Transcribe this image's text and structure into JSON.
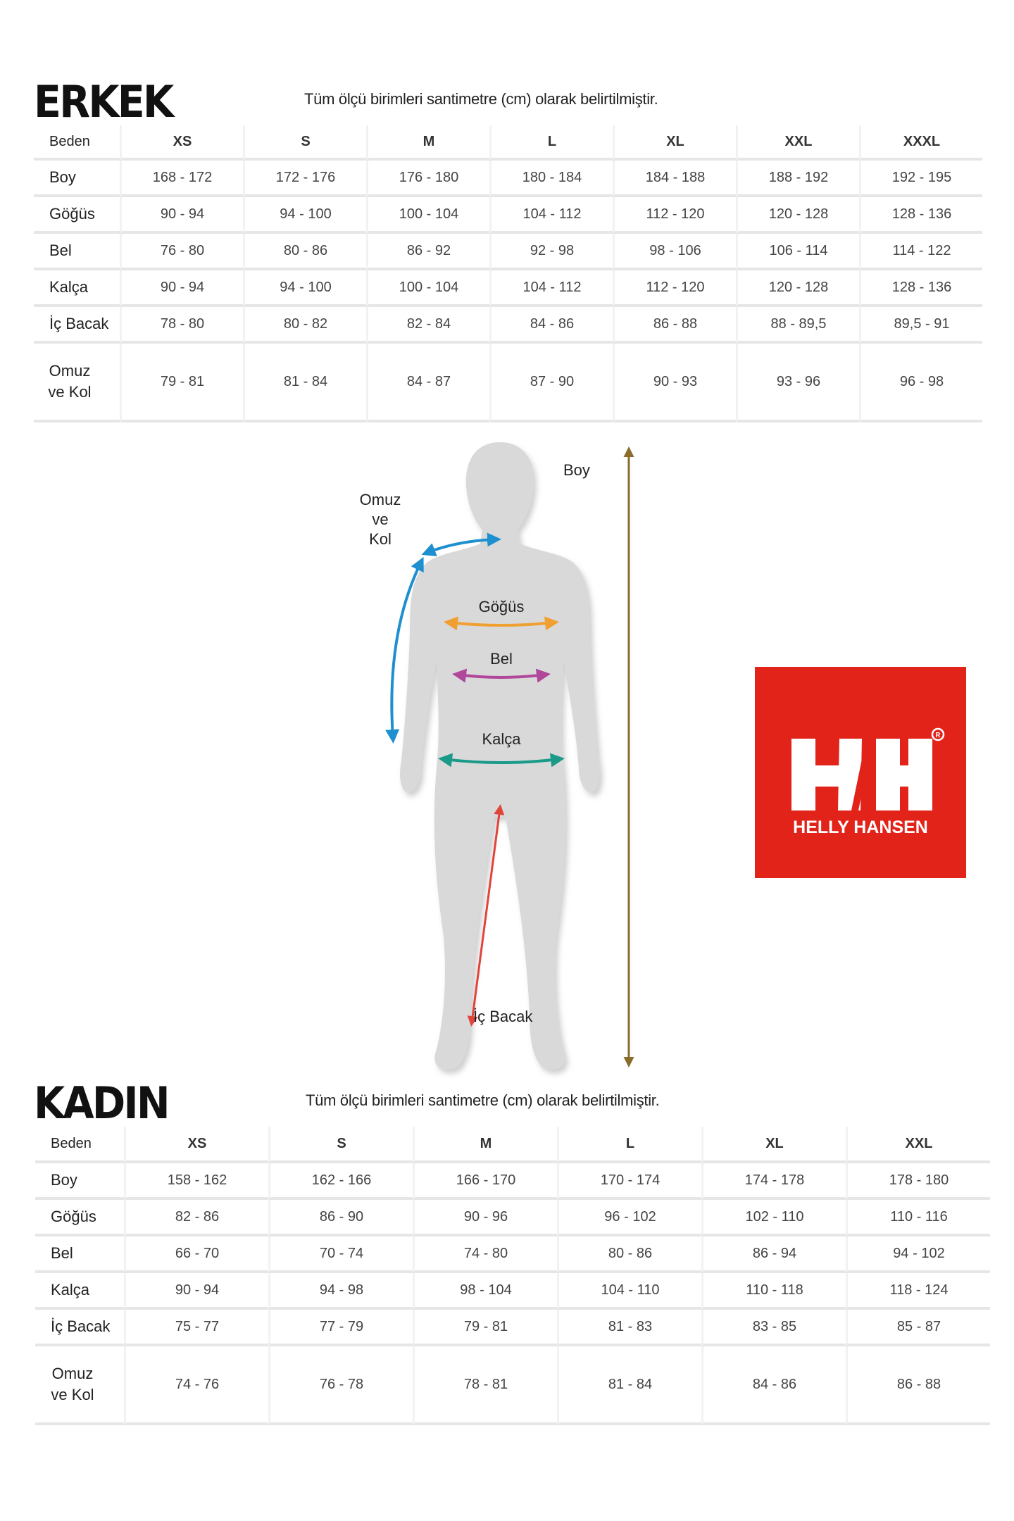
{
  "men": {
    "title": "ERKEK",
    "note": "Tüm ölçü birimleri santimetre (cm) olarak belirtilmiştir.",
    "header": [
      "Beden",
      "XS",
      "S",
      "M",
      "L",
      "XL",
      "XXL",
      "XXXL"
    ],
    "rows": [
      {
        "label": "Boy",
        "values": [
          "168 - 172",
          "172 - 176",
          "176 - 180",
          "180 - 184",
          "184 - 188",
          "188 - 192",
          "192 - 195"
        ]
      },
      {
        "label": "Göğüs",
        "values": [
          "90 - 94",
          "94 - 100",
          "100 - 104",
          "104 - 112",
          "112 - 120",
          "120 - 128",
          "128 - 136"
        ]
      },
      {
        "label": "Bel",
        "values": [
          "76 - 80",
          "80 - 86",
          "86 - 92",
          "92 - 98",
          "98 - 106",
          "106 - 114",
          "114 - 122"
        ]
      },
      {
        "label": "Kalça",
        "values": [
          "90 - 94",
          "94 - 100",
          "100 - 104",
          "104 - 112",
          "112 - 120",
          "120 - 128",
          "128 - 136"
        ]
      },
      {
        "label": "İç Bacak",
        "values": [
          "78 - 80",
          "80 - 82",
          "82 - 84",
          "84 - 86",
          "86 - 88",
          "88 - 89,5",
          "89,5 - 91"
        ]
      },
      {
        "label": "Omuz ve Kol",
        "values": [
          "79 - 81",
          "81 - 84",
          "84 - 87",
          "87 - 90",
          "90 - 93",
          "93 - 96",
          "96 - 98"
        ]
      }
    ]
  },
  "women": {
    "title": "KADIN",
    "note": "Tüm ölçü birimleri santimetre (cm) olarak belirtilmiştir.",
    "header": [
      "Beden",
      "XS",
      "S",
      "M",
      "L",
      "XL",
      "XXL"
    ],
    "rows": [
      {
        "label": "Boy",
        "values": [
          "158 - 162",
          "162 - 166",
          "166 - 170",
          "170 - 174",
          "174 - 178",
          "178 - 180"
        ]
      },
      {
        "label": "Göğüs",
        "values": [
          "82 - 86",
          "86 - 90",
          "90 - 96",
          "96 - 102",
          "102 - 110",
          "110 - 116"
        ]
      },
      {
        "label": "Bel",
        "values": [
          "66 - 70",
          "70 - 74",
          "74 - 80",
          "80 - 86",
          "86 - 94",
          "94 - 102"
        ]
      },
      {
        "label": "Kalça",
        "values": [
          "90 - 94",
          "94 - 98",
          "98 - 104",
          "104 - 110",
          "110 - 118",
          "118 - 124"
        ]
      },
      {
        "label": "İç Bacak",
        "values": [
          "75 - 77",
          "77 - 79",
          "79 - 81",
          "81 - 83",
          "83 - 85",
          "85 - 87"
        ]
      },
      {
        "label": "Omuz ve Kol",
        "values": [
          "74 - 76",
          "76 - 78",
          "78 - 81",
          "81 - 84",
          "84 - 86",
          "86 - 88"
        ]
      }
    ]
  },
  "figure": {
    "boy": "Boy",
    "omuz": [
      "Omuz",
      "ve",
      "Kol"
    ],
    "gogus": "Göğüs",
    "bel": "Bel",
    "kalca": "Kalça",
    "ic_bacak": "İç Bacak",
    "colors": {
      "boy": "#8a6d2b",
      "omuz": "#1e8fcf",
      "gogus": "#f0a030",
      "bel": "#b0479a",
      "kalca": "#1a9a88",
      "ic_bacak": "#e0443a",
      "body": "#d6d6d6"
    }
  },
  "logo": {
    "brand": "HELLY HANSEN",
    "mark": "H/H",
    "registered": "®",
    "color": "#e2231a"
  }
}
